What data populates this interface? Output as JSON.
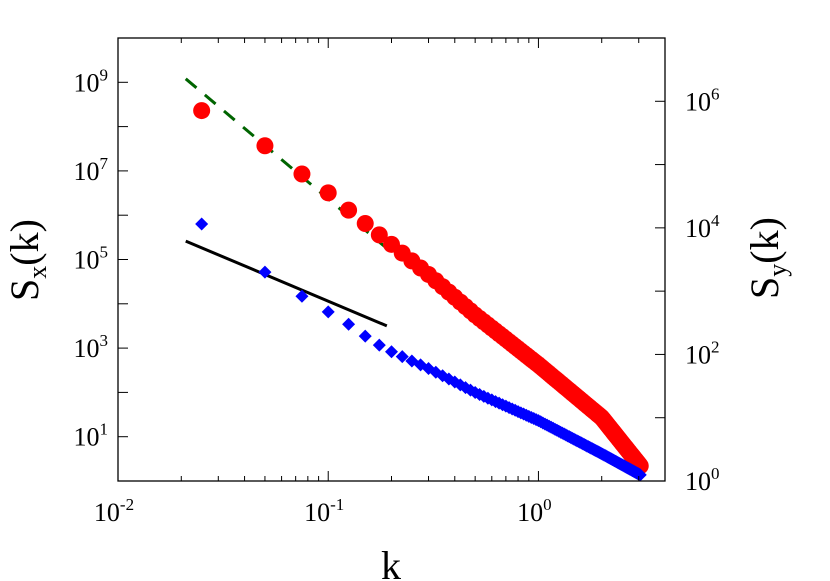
{
  "chart_data": {
    "type": "scatter",
    "xlabel": "k",
    "ylabel_left": {
      "base": "S",
      "sub": "x",
      "tail": "(k)"
    },
    "ylabel_right": {
      "base": "S",
      "sub": "y",
      "tail": "(k)"
    },
    "x_scale": "log",
    "x_range": [
      0.01,
      4.0
    ],
    "y_left_scale": "log",
    "y_left_range": [
      1.0,
      10000000000.0
    ],
    "y_right_scale": "log",
    "y_right_range": [
      1.0,
      10000000.0
    ],
    "x_ticks": [
      {
        "value": 0.01,
        "base": "10",
        "exp": "-2"
      },
      {
        "value": 0.1,
        "base": "10",
        "exp": "-1"
      },
      {
        "value": 1,
        "base": "10",
        "exp": "0"
      }
    ],
    "y_left_ticks": [
      {
        "value": 10,
        "base": "10",
        "exp": "1"
      },
      {
        "value": 1000,
        "base": "10",
        "exp": "3"
      },
      {
        "value": 100000,
        "base": "10",
        "exp": "5"
      },
      {
        "value": 10000000,
        "base": "10",
        "exp": "7"
      },
      {
        "value": 1000000000,
        "base": "10",
        "exp": "9"
      }
    ],
    "y_right_ticks": [
      {
        "value": 1,
        "base": "10",
        "exp": "0"
      },
      {
        "value": 100,
        "base": "10",
        "exp": "2"
      },
      {
        "value": 10000,
        "base": "10",
        "exp": "4"
      },
      {
        "value": 1000000,
        "base": "10",
        "exp": "6"
      }
    ],
    "grid": false,
    "series": [
      {
        "axis": "left",
        "marker": "circle",
        "color": "#ff0000",
        "k_min": 0.025,
        "k_step": 0.025,
        "k_max": 3.05,
        "exponent": -4,
        "points": [
          [
            0.025,
            230000000.0
          ],
          [
            0.05,
            37000000.0
          ],
          [
            0.075,
            8500000.0
          ],
          [
            0.1,
            3200000.0
          ],
          [
            0.125,
            1300000.0
          ],
          [
            0.15,
            650000.0
          ],
          [
            0.175,
            360000.0
          ],
          [
            0.2,
            220000.0
          ],
          [
            0.3,
            46000.0
          ],
          [
            0.5,
            5600.0
          ],
          [
            1.0,
            420
          ],
          [
            2.0,
            27
          ],
          [
            3.05,
            2.2
          ]
        ]
      },
      {
        "axis": "right",
        "marker": "diamond",
        "color": "#0000ff",
        "k_min": 0.025,
        "k_step": 0.025,
        "k_max": 3.05,
        "points": [
          [
            0.025,
            11500.0
          ],
          [
            0.05,
            2000.0
          ],
          [
            0.075,
            830
          ],
          [
            0.1,
            470
          ],
          [
            0.125,
            300
          ],
          [
            0.15,
            195
          ],
          [
            0.175,
            140
          ],
          [
            0.2,
            110
          ],
          [
            0.3,
            60
          ],
          [
            0.5,
            25
          ],
          [
            1.0,
            9
          ],
          [
            2.0,
            2.7
          ],
          [
            3.05,
            1.25
          ]
        ]
      }
    ],
    "reference_lines": [
      {
        "axis": "left",
        "style": "dashed",
        "color": "#006400",
        "exponent": -4,
        "k_from": 0.021,
        "k_to": 0.19,
        "y_at_from": 1200000000.0
      },
      {
        "axis": "left",
        "style": "solid",
        "color": "#000000",
        "exponent": -2,
        "k_from": 0.021,
        "k_to": 0.19,
        "y_at_from": 260000.0
      }
    ]
  }
}
